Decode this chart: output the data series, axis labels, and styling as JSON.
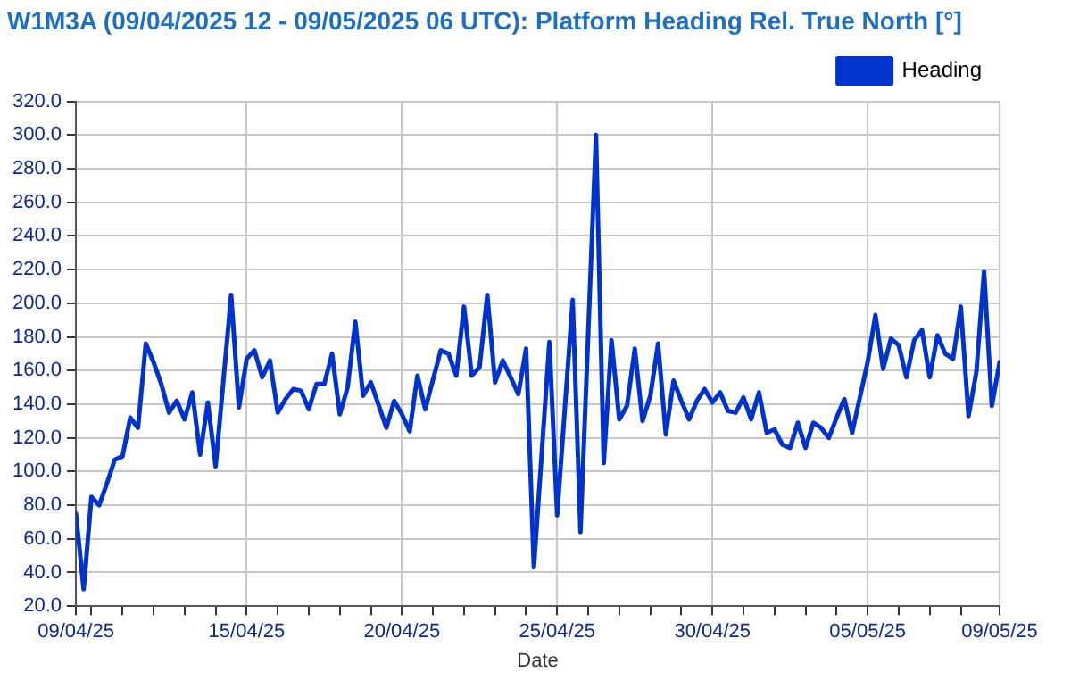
{
  "chart_data": {
    "type": "line",
    "title": "W1M3A (09/04/2025 12 - 09/05/2025 06 UTC): Platform Heading Rel. True North [°]",
    "xlabel": "Date",
    "xlim": [
      "2025-04-09T12:00",
      "2025-05-09T06:00"
    ],
    "xticks": [
      {
        "value": "2025-04-09T12:00",
        "label": "09/04/25"
      },
      {
        "value": "2025-04-10",
        "label": null
      },
      {
        "value": "2025-04-11",
        "label": null
      },
      {
        "value": "2025-04-12",
        "label": null
      },
      {
        "value": "2025-04-13",
        "label": null
      },
      {
        "value": "2025-04-14",
        "label": null
      },
      {
        "value": "2025-04-15",
        "label": "15/04/25"
      },
      {
        "value": "2025-04-16",
        "label": null
      },
      {
        "value": "2025-04-17",
        "label": null
      },
      {
        "value": "2025-04-18",
        "label": null
      },
      {
        "value": "2025-04-19",
        "label": null
      },
      {
        "value": "2025-04-20",
        "label": "20/04/25"
      },
      {
        "value": "2025-04-21",
        "label": null
      },
      {
        "value": "2025-04-22",
        "label": null
      },
      {
        "value": "2025-04-23",
        "label": null
      },
      {
        "value": "2025-04-24",
        "label": null
      },
      {
        "value": "2025-04-25",
        "label": "25/04/25"
      },
      {
        "value": "2025-04-26",
        "label": null
      },
      {
        "value": "2025-04-27",
        "label": null
      },
      {
        "value": "2025-04-28",
        "label": null
      },
      {
        "value": "2025-04-29",
        "label": null
      },
      {
        "value": "2025-04-30",
        "label": "30/04/25"
      },
      {
        "value": "2025-05-01",
        "label": null
      },
      {
        "value": "2025-05-02",
        "label": null
      },
      {
        "value": "2025-05-03",
        "label": null
      },
      {
        "value": "2025-05-04",
        "label": null
      },
      {
        "value": "2025-05-05",
        "label": "05/05/25"
      },
      {
        "value": "2025-05-06",
        "label": null
      },
      {
        "value": "2025-05-07",
        "label": null
      },
      {
        "value": "2025-05-08",
        "label": null
      },
      {
        "value": "2025-05-09T06:00",
        "label": "09/05/25"
      }
    ],
    "ylim": [
      20,
      320
    ],
    "yticks": [
      {
        "value": 20,
        "label": "20.0"
      },
      {
        "value": 40,
        "label": "40.0"
      },
      {
        "value": 60,
        "label": "60.0"
      },
      {
        "value": 80,
        "label": "80.0"
      },
      {
        "value": 100,
        "label": "100.0"
      },
      {
        "value": 120,
        "label": "120.0"
      },
      {
        "value": 140,
        "label": "140.0"
      },
      {
        "value": 160,
        "label": "160.0"
      },
      {
        "value": 180,
        "label": "180.0"
      },
      {
        "value": 200,
        "label": "200.0"
      },
      {
        "value": 220,
        "label": "220.0"
      },
      {
        "value": 240,
        "label": "240.0"
      },
      {
        "value": 260,
        "label": "260.0"
      },
      {
        "value": 280,
        "label": "280.0"
      },
      {
        "value": 300,
        "label": "300.0"
      },
      {
        "value": 320,
        "label": "320.0"
      }
    ],
    "grid": true,
    "legend": "top right",
    "marker": "none",
    "line_style": "solid",
    "series": [
      {
        "name": "Heading",
        "color": "#0033cc",
        "x": [
          "2025-04-09T12:00",
          "2025-04-09T18:00",
          "2025-04-10T00:00",
          "2025-04-10T06:00",
          "2025-04-10T12:00",
          "2025-04-10T18:00",
          "2025-04-11T00:00",
          "2025-04-11T06:00",
          "2025-04-11T12:00",
          "2025-04-11T18:00",
          "2025-04-12T00:00",
          "2025-04-12T06:00",
          "2025-04-12T12:00",
          "2025-04-12T18:00",
          "2025-04-13T00:00",
          "2025-04-13T06:00",
          "2025-04-13T12:00",
          "2025-04-13T18:00",
          "2025-04-14T00:00",
          "2025-04-14T12:00",
          "2025-04-14T18:00",
          "2025-04-15T00:00",
          "2025-04-15T06:00",
          "2025-04-15T12:00",
          "2025-04-15T18:00",
          "2025-04-16T00:00",
          "2025-04-16T06:00",
          "2025-04-16T12:00",
          "2025-04-16T18:00",
          "2025-04-17T00:00",
          "2025-04-17T06:00",
          "2025-04-17T12:00",
          "2025-04-17T18:00",
          "2025-04-18T00:00",
          "2025-04-18T06:00",
          "2025-04-18T12:00",
          "2025-04-18T18:00",
          "2025-04-19T00:00",
          "2025-04-19T12:00",
          "2025-04-19T18:00",
          "2025-04-20T00:00",
          "2025-04-20T06:00",
          "2025-04-20T12:00",
          "2025-04-20T18:00",
          "2025-04-21T06:00",
          "2025-04-21T12:00",
          "2025-04-21T18:00",
          "2025-04-22T00:00",
          "2025-04-22T06:00",
          "2025-04-22T12:00",
          "2025-04-22T18:00",
          "2025-04-23T00:00",
          "2025-04-23T06:00",
          "2025-04-23T18:00",
          "2025-04-24T00:00",
          "2025-04-24T06:00",
          "2025-04-24T18:00",
          "2025-04-25T00:00",
          "2025-04-25T12:00",
          "2025-04-25T18:00",
          "2025-04-26T06:00",
          "2025-04-26T12:00",
          "2025-04-26T18:00",
          "2025-04-27T00:00",
          "2025-04-27T06:00",
          "2025-04-27T12:00",
          "2025-04-27T18:00",
          "2025-04-28T00:00",
          "2025-04-28T06:00",
          "2025-04-28T12:00",
          "2025-04-28T18:00",
          "2025-04-29T00:00",
          "2025-04-29T06:00",
          "2025-04-29T12:00",
          "2025-04-29T18:00",
          "2025-04-30T00:00",
          "2025-04-30T06:00",
          "2025-04-30T12:00",
          "2025-04-30T18:00",
          "2025-05-01T00:00",
          "2025-05-01T06:00",
          "2025-05-01T12:00",
          "2025-05-01T18:00",
          "2025-05-02T00:00",
          "2025-05-02T06:00",
          "2025-05-02T12:00",
          "2025-05-02T18:00",
          "2025-05-03T00:00",
          "2025-05-03T06:00",
          "2025-05-03T12:00",
          "2025-05-03T18:00",
          "2025-05-04T00:00",
          "2025-05-04T06:00",
          "2025-05-04T12:00",
          "2025-05-05T00:00",
          "2025-05-05T06:00",
          "2025-05-05T12:00",
          "2025-05-05T18:00",
          "2025-05-06T00:00",
          "2025-05-06T06:00",
          "2025-05-06T12:00",
          "2025-05-06T18:00",
          "2025-05-07T00:00",
          "2025-05-07T06:00",
          "2025-05-07T12:00",
          "2025-05-07T18:00",
          "2025-05-08T00:00",
          "2025-05-08T06:00",
          "2025-05-08T12:00",
          "2025-05-08T18:00",
          "2025-05-09T00:00",
          "2025-05-09T06:00"
        ],
        "values": [
          75,
          30,
          85,
          80,
          93,
          107,
          109,
          132,
          126,
          176,
          165,
          152,
          135,
          142,
          131,
          147,
          110,
          141,
          103,
          205,
          138,
          167,
          172,
          156,
          166,
          135,
          143,
          149,
          148,
          137,
          152,
          152,
          170,
          134,
          150,
          189,
          145,
          153,
          126,
          142,
          134,
          124,
          157,
          137,
          172,
          170,
          157,
          198,
          157,
          162,
          205,
          153,
          166,
          146,
          173,
          43,
          177,
          74,
          202,
          64,
          300,
          105,
          178,
          131,
          139,
          173,
          130,
          145,
          176,
          122,
          154,
          142,
          131,
          142,
          149,
          141,
          147,
          136,
          135,
          144,
          131,
          147,
          123,
          125,
          116,
          114,
          129,
          114,
          129,
          126,
          120,
          132,
          143,
          123,
          165,
          193,
          161,
          179,
          175,
          156,
          178,
          184,
          156,
          181,
          170,
          167,
          198,
          133,
          159,
          219,
          139,
          165
        ]
      }
    ]
  }
}
